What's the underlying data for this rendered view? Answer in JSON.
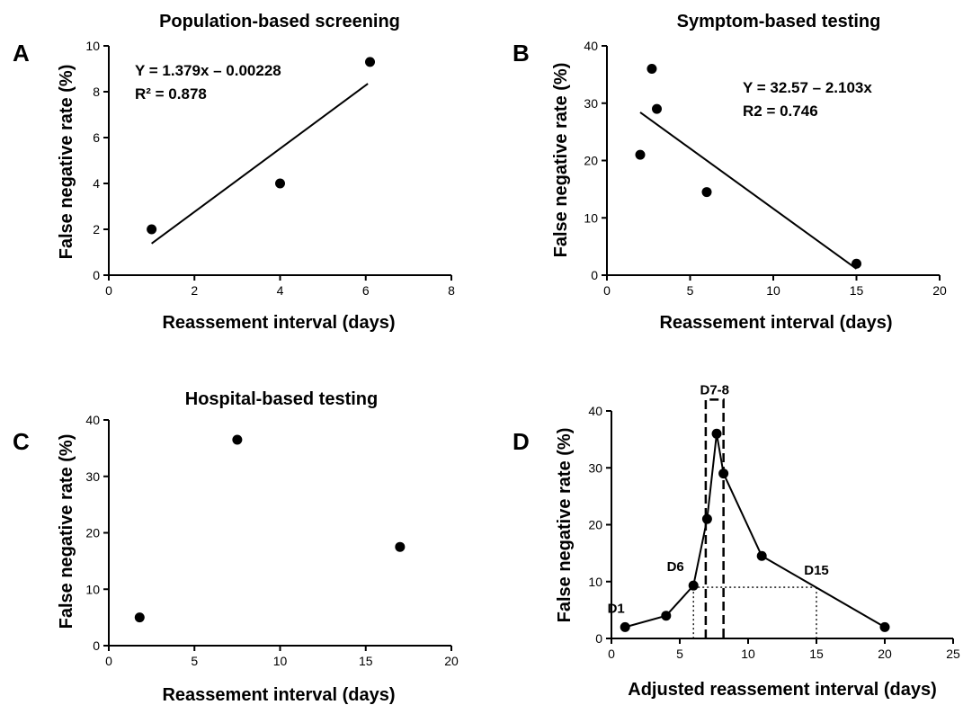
{
  "chart_data": [
    {
      "panel": "A",
      "type": "scatter",
      "title": "Population-based screening",
      "xlabel": "Reassement interval (days)",
      "ylabel": "False negative rate (%)",
      "xlim": [
        0,
        8
      ],
      "ylim": [
        0,
        10
      ],
      "xticks": [
        0,
        2,
        4,
        6,
        8
      ],
      "yticks": [
        0,
        2,
        4,
        6,
        8,
        10
      ],
      "points": [
        [
          1,
          2
        ],
        [
          4,
          4
        ],
        [
          6.1,
          9.3
        ]
      ],
      "fit": {
        "x": [
          1,
          6.05
        ],
        "y": [
          1.38,
          8.35
        ]
      },
      "annotations": [
        "Y = 1.379x – 0.00228",
        "R² = 0.878"
      ]
    },
    {
      "panel": "B",
      "type": "scatter",
      "title": "Symptom-based testing",
      "xlabel": "Reassement interval (days)",
      "ylabel": "False negative rate (%)",
      "xlim": [
        0,
        20
      ],
      "ylim": [
        0,
        40
      ],
      "xticks": [
        0,
        5,
        10,
        15,
        20
      ],
      "yticks": [
        0,
        10,
        20,
        30,
        40
      ],
      "points": [
        [
          2,
          21
        ],
        [
          2.7,
          36
        ],
        [
          3,
          29
        ],
        [
          6,
          14.5
        ],
        [
          15,
          2
        ]
      ],
      "fit": {
        "x": [
          2,
          15
        ],
        "y": [
          28.4,
          1.1
        ]
      },
      "annotations": [
        "Y = 32.57 – 2.103x",
        "R2 = 0.746"
      ]
    },
    {
      "panel": "C",
      "type": "scatter",
      "title": "Hospital-based testing",
      "xlabel": "Reassement interval (days)",
      "ylabel": "False negative rate (%)",
      "xlim": [
        0,
        20
      ],
      "ylim": [
        0,
        40
      ],
      "xticks": [
        0,
        5,
        10,
        15,
        20
      ],
      "yticks": [
        0,
        10,
        20,
        30,
        40
      ],
      "points": [
        [
          1.8,
          5
        ],
        [
          7.5,
          36.5
        ],
        [
          17,
          17.5
        ]
      ]
    },
    {
      "panel": "D",
      "type": "line",
      "title": "",
      "xlabel": "Adjusted reassement interval (days)",
      "ylabel": "False negative rate (%)",
      "xlim": [
        0,
        25
      ],
      "ylim": [
        0,
        40
      ],
      "xticks": [
        0,
        5,
        10,
        15,
        20,
        25
      ],
      "yticks": [
        0,
        10,
        20,
        30,
        40
      ],
      "points": [
        [
          1,
          2
        ],
        [
          4,
          4
        ],
        [
          6,
          9.3
        ],
        [
          7,
          21
        ],
        [
          7.7,
          36
        ],
        [
          8.2,
          29
        ],
        [
          11,
          14.5
        ],
        [
          20,
          2
        ]
      ],
      "box_label": "D7-8",
      "box": {
        "x": [
          6.9,
          8.2
        ],
        "y": [
          0,
          42
        ]
      },
      "point_labels": [
        {
          "text": "D1",
          "x": 1,
          "y": 2
        },
        {
          "text": "D6",
          "x": 6,
          "y": 9.3
        },
        {
          "text": "D15",
          "x": 15,
          "y": 9
        }
      ],
      "dotted_guides": {
        "x_start": 6,
        "x_end": 15,
        "y": 9
      }
    }
  ]
}
